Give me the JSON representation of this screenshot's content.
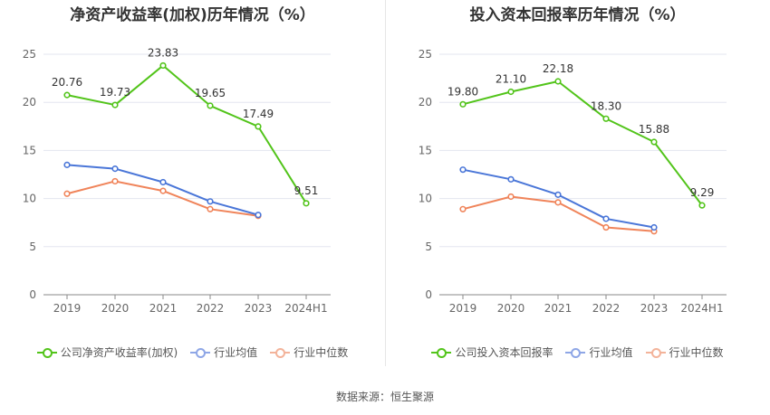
{
  "source": "数据来源：恒生聚源",
  "chart_data": [
    {
      "type": "line",
      "title": "净资产收益率(加权)历年情况（%）",
      "categories": [
        "2019",
        "2020",
        "2021",
        "2022",
        "2023",
        "2024H1"
      ],
      "ylim": [
        0,
        25
      ],
      "yticks": [
        0,
        5,
        10,
        15,
        20,
        25
      ],
      "grid": true,
      "legend_position": "bottom",
      "series": [
        {
          "name": "公司净资产收益率(加权)",
          "color": "#52c41a",
          "values": [
            20.76,
            19.73,
            23.83,
            19.65,
            17.49,
            9.51
          ],
          "labels": [
            "20.76",
            "19.73",
            "23.83",
            "19.65",
            "17.49",
            "9.51"
          ]
        },
        {
          "name": "行业均值",
          "color": "#4a76d8",
          "values": [
            13.5,
            13.1,
            11.7,
            9.7,
            8.3,
            null
          ]
        },
        {
          "name": "行业中位数",
          "color": "#f0845a",
          "values": [
            10.5,
            11.8,
            10.8,
            8.9,
            8.2,
            null
          ]
        }
      ]
    },
    {
      "type": "line",
      "title": "投入资本回报率历年情况（%）",
      "categories": [
        "2019",
        "2020",
        "2021",
        "2022",
        "2023",
        "2024H1"
      ],
      "ylim": [
        0,
        25
      ],
      "yticks": [
        0,
        5,
        10,
        15,
        20,
        25
      ],
      "grid": true,
      "legend_position": "bottom",
      "series": [
        {
          "name": "公司投入资本回报率",
          "color": "#52c41a",
          "values": [
            19.8,
            21.1,
            22.18,
            18.3,
            15.88,
            9.29
          ],
          "labels": [
            "19.80",
            "21.10",
            "22.18",
            "18.30",
            "15.88",
            "9.29"
          ]
        },
        {
          "name": "行业均值",
          "color": "#4a76d8",
          "values": [
            13.0,
            12.0,
            10.4,
            7.9,
            7.0,
            null
          ]
        },
        {
          "name": "行业中位数",
          "color": "#f0845a",
          "values": [
            8.9,
            10.2,
            9.6,
            7.0,
            6.6,
            null
          ]
        }
      ]
    }
  ]
}
